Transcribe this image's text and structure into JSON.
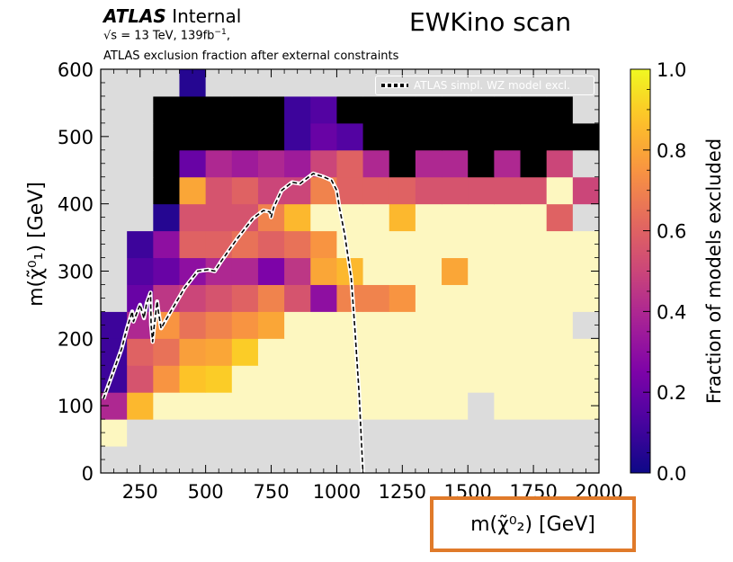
{
  "header": {
    "atlas_word": "ATLAS",
    "atlas_status": "Internal",
    "energy_prefix": "√s = 13 TeV, 139fb",
    "energy_exponent": "−1",
    "energy_suffix": ",",
    "exclusion_note": "ATLAS exclusion fraction after external constraints"
  },
  "chart_data": {
    "type": "heatmap",
    "title": "EWKino scan",
    "xlabel": "m(χ̃⁰₂) [GeV]",
    "ylabel": "m(χ̃⁰₁) [GeV]",
    "colorbar_label": "Fraction of models excluded",
    "xlim": [
      100,
      2000
    ],
    "ylim": [
      0,
      600
    ],
    "clim": [
      0,
      1
    ],
    "x_ticks": [
      250,
      500,
      750,
      1000,
      1250,
      1500,
      1750,
      2000
    ],
    "y_ticks": [
      0,
      100,
      200,
      300,
      400,
      500,
      600
    ],
    "colorbar_ticks": [
      "0.0",
      "0.2",
      "0.4",
      "0.6",
      "0.8",
      "1.0"
    ],
    "colormap": "plasma",
    "no_data_color": "#dcdcdc",
    "zero_color": "#000000",
    "bin_width_x": 100,
    "bin_height_y": 40,
    "bin_x_start": 100,
    "bin_y_start": 0,
    "grid": false,
    "legend_placement": "top-right",
    "legend": [
      {
        "label": "ATLAS simpl. WZ model excl.",
        "style": "dashed-white-outline"
      }
    ],
    "cells": [
      [
        "N",
        "N",
        "N",
        "N",
        "N",
        "N",
        "N",
        "N",
        "N",
        "N",
        "N",
        "N",
        "N",
        "N",
        "N",
        "N",
        "N",
        "N",
        "N"
      ],
      [
        0.95,
        "N",
        "N",
        "N",
        "N",
        "N",
        "N",
        "N",
        "N",
        "N",
        "N",
        "N",
        "N",
        "N",
        "N",
        "N",
        "N",
        "N",
        "N"
      ],
      [
        0.4,
        0.85,
        0.95,
        0.95,
        0.95,
        0.95,
        0.95,
        0.95,
        0.95,
        0.95,
        0.95,
        0.95,
        0.95,
        0.95,
        "N",
        0.95,
        0.95,
        0.95,
        0.95
      ],
      [
        0.1,
        0.55,
        0.75,
        0.88,
        0.9,
        0.95,
        0.95,
        0.95,
        0.95,
        0.95,
        0.95,
        0.95,
        0.95,
        0.95,
        0.95,
        0.95,
        0.95,
        0.95,
        0.95
      ],
      [
        0.1,
        0.6,
        0.65,
        0.78,
        0.8,
        0.9,
        0.95,
        0.95,
        0.95,
        0.95,
        0.95,
        0.95,
        0.95,
        0.95,
        0.95,
        0.95,
        0.95,
        0.95,
        0.95
      ],
      [
        0.1,
        0.4,
        0.75,
        0.65,
        0.7,
        0.75,
        0.8,
        0.95,
        0.95,
        0.95,
        0.95,
        0.95,
        0.95,
        0.95,
        0.95,
        0.95,
        0.95,
        0.95,
        "N"
      ],
      [
        "N",
        0.2,
        0.45,
        0.5,
        0.55,
        0.6,
        0.7,
        0.55,
        0.3,
        0.7,
        0.7,
        0.75,
        0.95,
        0.95,
        0.95,
        0.95,
        0.95,
        0.95,
        0.95
      ],
      [
        "N",
        0.15,
        0.2,
        0.3,
        0.4,
        0.4,
        0.25,
        0.45,
        0.8,
        0.85,
        0.95,
        0.95,
        0.95,
        0.8,
        0.95,
        0.95,
        0.95,
        0.95,
        0.95
      ],
      [
        "N",
        0.1,
        0.3,
        0.6,
        0.6,
        0.65,
        0.6,
        0.65,
        0.75,
        0.95,
        0.95,
        0.95,
        0.95,
        0.95,
        0.95,
        0.95,
        0.95,
        0.95,
        0.95
      ],
      [
        "N",
        "N",
        0.05,
        0.55,
        0.55,
        0.55,
        0.7,
        0.85,
        0.95,
        0.95,
        0.95,
        0.85,
        0.95,
        0.95,
        0.95,
        0.95,
        0.95,
        0.6,
        "N"
      ],
      [
        "N",
        "N",
        0,
        0.8,
        0.55,
        0.6,
        0.5,
        0.5,
        0.7,
        0.6,
        0.6,
        0.6,
        0.55,
        0.55,
        0.55,
        0.55,
        0.55,
        0.95,
        0.5
      ],
      [
        "N",
        "N",
        0,
        0.2,
        0.4,
        0.35,
        0.4,
        0.35,
        0.5,
        0.6,
        0.4,
        0,
        0.4,
        0.4,
        0,
        0.4,
        0,
        0.5,
        "N"
      ],
      [
        "N",
        "N",
        0,
        0,
        0,
        0,
        0,
        0.1,
        0.2,
        0.15,
        0,
        0,
        0,
        0,
        0,
        0,
        0,
        0,
        0
      ],
      [
        "N",
        "N",
        0,
        0,
        0,
        0,
        0,
        0.1,
        0.15,
        0,
        0,
        0,
        0,
        0,
        0,
        0,
        0,
        0,
        "N"
      ],
      [
        "N",
        "N",
        "N",
        0.05,
        "N",
        "N",
        "N",
        "N",
        "N",
        "N",
        "N",
        "N",
        "N",
        "N",
        "N",
        "N",
        "N",
        "N",
        "N"
      ]
    ],
    "contour": [
      [
        110,
        110
      ],
      [
        180,
        185
      ],
      [
        200,
        215
      ],
      [
        220,
        240
      ],
      [
        225,
        225
      ],
      [
        250,
        250
      ],
      [
        265,
        230
      ],
      [
        275,
        252
      ],
      [
        290,
        268
      ],
      [
        292,
        220
      ],
      [
        298,
        195
      ],
      [
        302,
        212
      ],
      [
        315,
        255
      ],
      [
        320,
        240
      ],
      [
        330,
        215
      ],
      [
        360,
        235
      ],
      [
        420,
        275
      ],
      [
        470,
        300
      ],
      [
        510,
        302
      ],
      [
        535,
        300
      ],
      [
        560,
        315
      ],
      [
        620,
        348
      ],
      [
        680,
        378
      ],
      [
        720,
        390
      ],
      [
        745,
        388
      ],
      [
        750,
        380
      ],
      [
        760,
        395
      ],
      [
        790,
        420
      ],
      [
        830,
        432
      ],
      [
        860,
        430
      ],
      [
        910,
        445
      ],
      [
        950,
        440
      ],
      [
        980,
        435
      ],
      [
        1000,
        420
      ],
      [
        1010,
        395
      ],
      [
        1030,
        355
      ],
      [
        1055,
        290
      ],
      [
        1070,
        210
      ],
      [
        1085,
        120
      ],
      [
        1095,
        40
      ],
      [
        1100,
        0
      ]
    ]
  }
}
